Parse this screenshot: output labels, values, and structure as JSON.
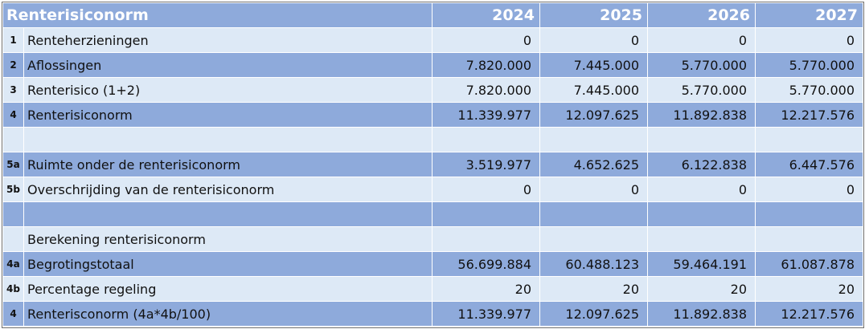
{
  "header": {
    "title": "Renterisiconorm",
    "years": [
      "2024",
      "2025",
      "2026",
      "2027"
    ]
  },
  "rows": [
    {
      "num": "1",
      "label": "Renteherzieningen",
      "values": [
        "0",
        "0",
        "0",
        "0"
      ],
      "shade": "light"
    },
    {
      "num": "2",
      "label": "Aflossingen",
      "values": [
        "7.820.000",
        "7.445.000",
        "5.770.000",
        "5.770.000"
      ],
      "shade": "dark"
    },
    {
      "num": "3",
      "label": "Renterisico (1+2)",
      "values": [
        "7.820.000",
        "7.445.000",
        "5.770.000",
        "5.770.000"
      ],
      "shade": "light"
    },
    {
      "num": "4",
      "label": "Renterisiconorm",
      "values": [
        "11.339.977",
        "12.097.625",
        "11.892.838",
        "12.217.576"
      ],
      "shade": "dark"
    },
    {
      "num": "",
      "label": "",
      "values": [
        "",
        "",
        "",
        ""
      ],
      "shade": "light"
    },
    {
      "num": "5a",
      "label": "Ruimte onder de renterisiconorm",
      "values": [
        "3.519.977",
        "4.652.625",
        "6.122.838",
        "6.447.576"
      ],
      "shade": "dark"
    },
    {
      "num": "5b",
      "label": "Overschrijding van de renterisiconorm",
      "values": [
        "0",
        "0",
        "0",
        "0"
      ],
      "shade": "light"
    },
    {
      "num": "",
      "label": "",
      "values": [
        "",
        "",
        "",
        ""
      ],
      "shade": "dark"
    },
    {
      "num": "",
      "label": "Berekening renterisiconorm",
      "values": [
        "",
        "",
        "",
        ""
      ],
      "shade": "light"
    },
    {
      "num": "4a",
      "label": "Begrotingstotaal",
      "values": [
        "56.699.884",
        "60.488.123",
        "59.464.191",
        "61.087.878"
      ],
      "shade": "dark"
    },
    {
      "num": "4b",
      "label": "Percentage regeling",
      "values": [
        "20",
        "20",
        "20",
        "20"
      ],
      "shade": "light"
    },
    {
      "num": "4",
      "label": "Renterisconorm (4a*4b/100)",
      "values": [
        "11.339.977",
        "12.097.625",
        "11.892.838",
        "12.217.576"
      ],
      "shade": "dark"
    }
  ]
}
